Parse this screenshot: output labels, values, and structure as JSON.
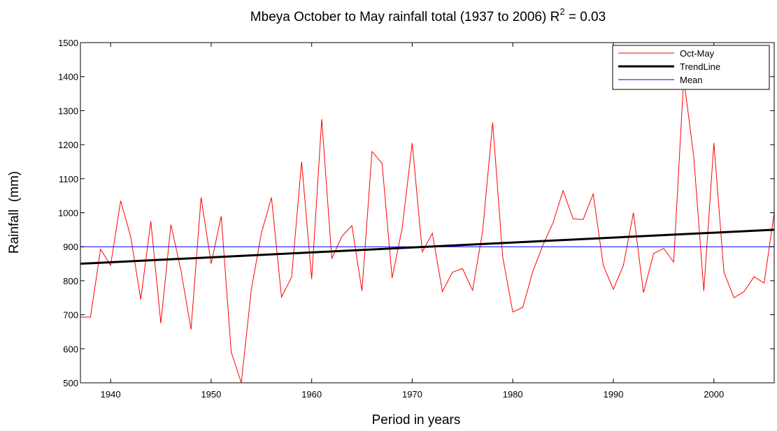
{
  "chart_data": {
    "type": "line",
    "title": "Mbeya October to May rainfall total (1937 to 2006) R",
    "title_superscript": "2",
    "title_suffix": " = 0.03",
    "xlabel": "Period in years",
    "ylabel": "Rainfall  (mm)",
    "xlim": [
      1937,
      2006
    ],
    "ylim": [
      500,
      1500
    ],
    "xticks": [
      1940,
      1950,
      1960,
      1970,
      1980,
      1990,
      2000
    ],
    "yticks": [
      500,
      600,
      700,
      800,
      900,
      1000,
      1100,
      1200,
      1300,
      1400,
      1500
    ],
    "grid": false,
    "legend": "top-right",
    "series": [
      {
        "name": "Oct-May",
        "color": "#ff0000",
        "width": 1,
        "x": [
          1937,
          1938,
          1939,
          1940,
          1941,
          1942,
          1943,
          1944,
          1945,
          1946,
          1947,
          1948,
          1949,
          1950,
          1951,
          1952,
          1953,
          1954,
          1955,
          1956,
          1957,
          1958,
          1959,
          1960,
          1961,
          1962,
          1963,
          1964,
          1965,
          1966,
          1967,
          1968,
          1969,
          1970,
          1971,
          1972,
          1973,
          1974,
          1975,
          1976,
          1977,
          1978,
          1979,
          1980,
          1981,
          1982,
          1983,
          1984,
          1985,
          1986,
          1987,
          1988,
          1989,
          1990,
          1991,
          1992,
          1993,
          1994,
          1995,
          1996,
          1997,
          1998,
          1999,
          2000,
          2001,
          2002,
          2003,
          2004,
          2005,
          2006
        ],
        "values": [
          693,
          693,
          893,
          845,
          1035,
          930,
          745,
          975,
          675,
          965,
          830,
          657,
          1045,
          850,
          990,
          590,
          500,
          775,
          940,
          1045,
          752,
          810,
          1150,
          805,
          1275,
          865,
          930,
          962,
          770,
          1180,
          1145,
          808,
          955,
          1205,
          885,
          940,
          768,
          825,
          836,
          772,
          945,
          1265,
          870,
          708,
          722,
          828,
          905,
          970,
          1065,
          982,
          980,
          1055,
          845,
          775,
          845,
          1000,
          765,
          880,
          895,
          855,
          1395,
          1165,
          770,
          1205,
          825,
          750,
          768,
          812,
          793,
          1000
        ]
      },
      {
        "name": "TrendLine",
        "color": "#000000",
        "width": 3,
        "x": [
          1937,
          2006
        ],
        "values": [
          850,
          950
        ]
      },
      {
        "name": "Mean",
        "color": "#0000ff",
        "width": 1,
        "x": [
          1937,
          2006
        ],
        "values": [
          900,
          900
        ]
      }
    ]
  }
}
